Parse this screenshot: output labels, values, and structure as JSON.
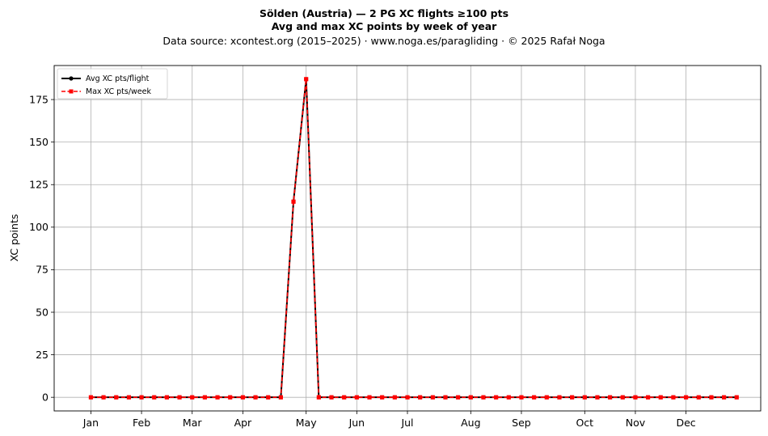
{
  "chart_data": {
    "type": "line",
    "title": "Sölden (Austria)  —  2 PG XC flights ≥100 pts",
    "subtitle": "Avg and max XC points by week of year",
    "source_line": "Data source: xcontest.org (2015–2025)  ·  www.noga.es/paragliding  ·  © 2025 Rafał Noga",
    "xlabel": "",
    "ylabel": "XC points",
    "ylim": [
      -8,
      195
    ],
    "yticks": [
      0,
      25,
      50,
      75,
      100,
      125,
      150,
      175
    ],
    "xlim": [
      -1.9,
      53.9
    ],
    "month_ticks": [
      {
        "label": "Jan",
        "week": 1
      },
      {
        "label": "Feb",
        "week": 5
      },
      {
        "label": "Mar",
        "week": 9
      },
      {
        "label": "Apr",
        "week": 13
      },
      {
        "label": "May",
        "week": 18
      },
      {
        "label": "Jun",
        "week": 22
      },
      {
        "label": "Jul",
        "week": 26
      },
      {
        "label": "Aug",
        "week": 31
      },
      {
        "label": "Sep",
        "week": 35
      },
      {
        "label": "Oct",
        "week": 40
      },
      {
        "label": "Nov",
        "week": 44
      },
      {
        "label": "Dec",
        "week": 48
      }
    ],
    "grid": true,
    "legend_position": "top-left",
    "x": [
      1,
      2,
      3,
      4,
      5,
      6,
      7,
      8,
      9,
      10,
      11,
      12,
      13,
      14,
      15,
      16,
      17,
      18,
      19,
      20,
      21,
      22,
      23,
      24,
      25,
      26,
      27,
      28,
      29,
      30,
      31,
      32,
      33,
      34,
      35,
      36,
      37,
      38,
      39,
      40,
      41,
      42,
      43,
      44,
      45,
      46,
      47,
      48,
      49,
      50,
      51,
      52
    ],
    "series": [
      {
        "name": "Avg XC pts/flight",
        "color": "#000000",
        "style": "solid-dot",
        "values": [
          0,
          0,
          0,
          0,
          0,
          0,
          0,
          0,
          0,
          0,
          0,
          0,
          0,
          0,
          0,
          0,
          115,
          187,
          0,
          0,
          0,
          0,
          0,
          0,
          0,
          0,
          0,
          0,
          0,
          0,
          0,
          0,
          0,
          0,
          0,
          0,
          0,
          0,
          0,
          0,
          0,
          0,
          0,
          0,
          0,
          0,
          0,
          0,
          0,
          0,
          0,
          0
        ]
      },
      {
        "name": "Max XC pts/week",
        "color": "#ff0000",
        "style": "dashed-square",
        "values": [
          0,
          0,
          0,
          0,
          0,
          0,
          0,
          0,
          0,
          0,
          0,
          0,
          0,
          0,
          0,
          0,
          115,
          187,
          0,
          0,
          0,
          0,
          0,
          0,
          0,
          0,
          0,
          0,
          0,
          0,
          0,
          0,
          0,
          0,
          0,
          0,
          0,
          0,
          0,
          0,
          0,
          0,
          0,
          0,
          0,
          0,
          0,
          0,
          0,
          0,
          0,
          0
        ]
      }
    ]
  }
}
